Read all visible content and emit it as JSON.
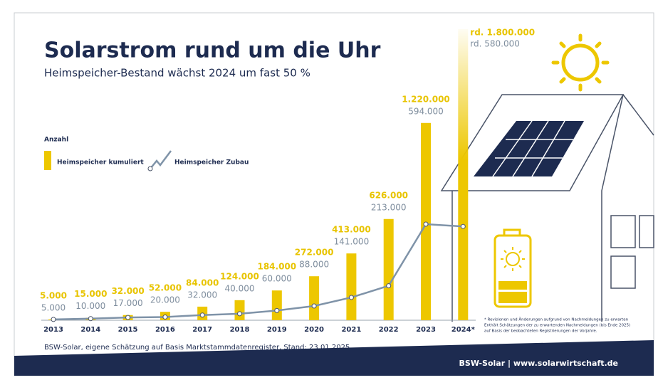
{
  "chart_data": {
    "type": "bar",
    "title": "Solarstrom rund um die Uhr",
    "subtitle": "Heimspeicher-Bestand wächst 2024 um fast 50 %",
    "axis_label": "Anzahl",
    "categories": [
      "2013",
      "2014",
      "2015",
      "2016",
      "2017",
      "2018",
      "2019",
      "2020",
      "2021",
      "2022",
      "2023",
      "2024*"
    ],
    "series": [
      {
        "name": "Heimspeicher kumuliert",
        "type": "bar",
        "color": "#edc700",
        "values": [
          5000,
          15000,
          32000,
          52000,
          84000,
          124000,
          184000,
          272000,
          413000,
          626000,
          1220000,
          1800000
        ],
        "value_labels": [
          "5.000",
          "15.000",
          "32.000",
          "52.000",
          "84.000",
          "124.000",
          "184.000",
          "272.000",
          "413.000",
          "626.000",
          "1.220.000",
          "rd. 1.800.000"
        ]
      },
      {
        "name": "Heimspeicher Zubau",
        "type": "line",
        "color": "#7f93a8",
        "values": [
          5000,
          10000,
          17000,
          20000,
          32000,
          40000,
          60000,
          88000,
          141000,
          213000,
          594000,
          580000
        ],
        "value_labels": [
          "5.000",
          "10.000",
          "17.000",
          "20.000",
          "32.000",
          "40.000",
          "60.000",
          "88.000",
          "141.000",
          "213.000",
          "594.000",
          "rd. 580.000"
        ]
      }
    ],
    "ylim": [
      0,
      1800000
    ],
    "source": "BSW-Solar, eigene Schätzung auf Basis Marktstammdatenregister, Stand: 23.01.2025",
    "footnote": [
      "* Revisionen und Änderungen aufgrund von Nachmeldungen zu erwarten",
      "Enthält Schätzungen der zu erwartenden Nachmeldungen (bis Ende 2025)",
      "auf Basis der beobachteten Registrierungen der Vorjahre."
    ],
    "footer": "BSW-Solar | www.solarwirtschaft.de"
  }
}
